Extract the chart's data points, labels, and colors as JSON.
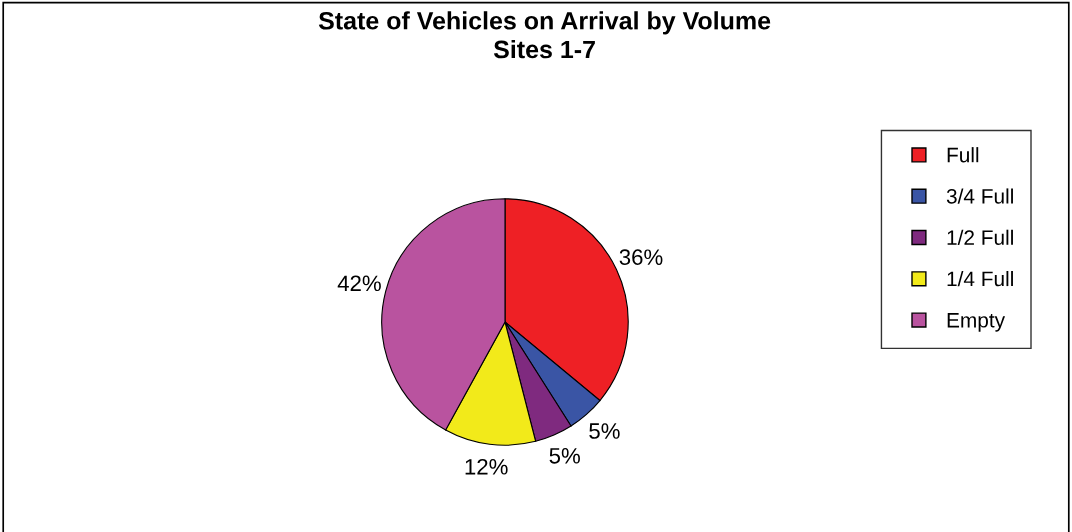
{
  "chart_data": {
    "type": "pie",
    "title": "State of Vehicles on Arrival by Volume\nSites 1-7",
    "categories": [
      "Full",
      "3/4 Full",
      "1/2 Full",
      "1/4 Full",
      "Empty"
    ],
    "values": [
      36,
      5,
      5,
      12,
      42
    ],
    "colors": [
      "#ee2025",
      "#3a55a5",
      "#7f2a7f",
      "#f2ea1a",
      "#b9539f"
    ],
    "value_labels": [
      "36%",
      "5%",
      "5%",
      "12%",
      "42%"
    ],
    "legend": "right"
  }
}
